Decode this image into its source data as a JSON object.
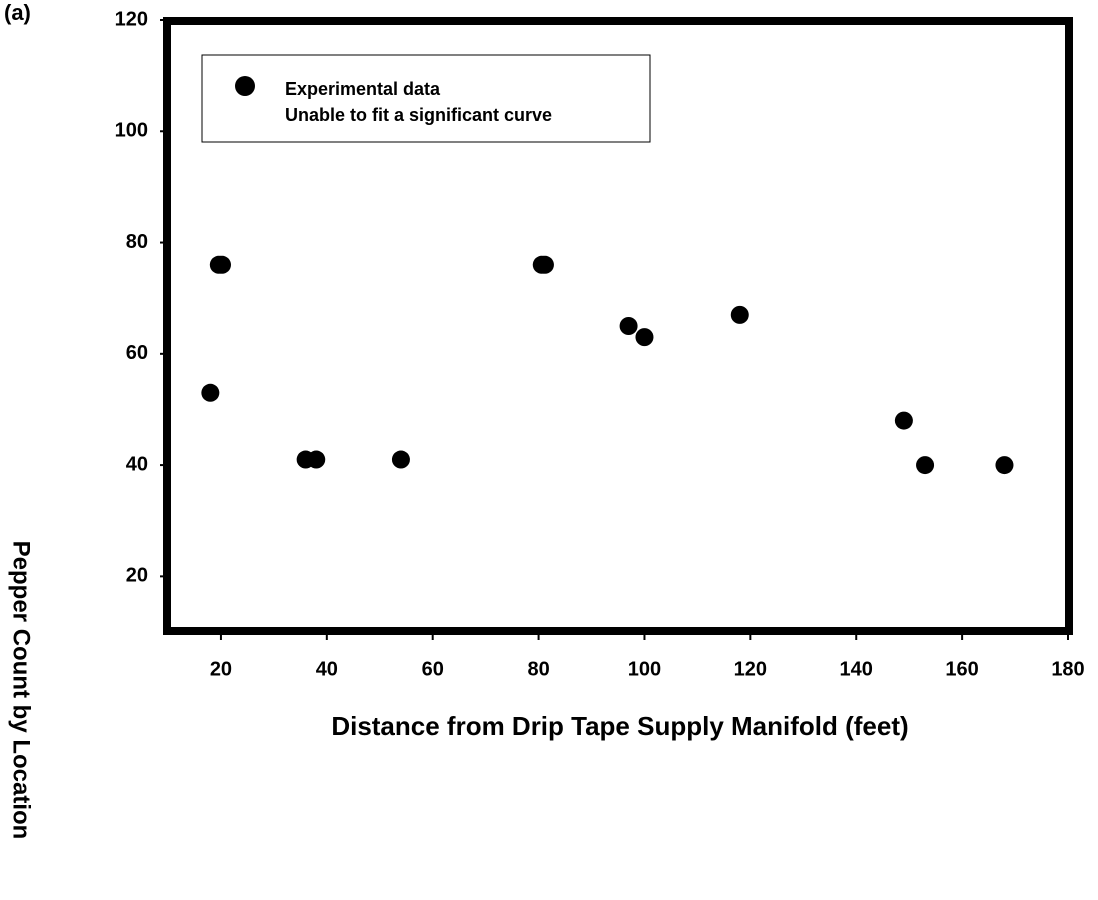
{
  "chart_data": {
    "type": "scatter",
    "panel_label": "(a)",
    "xlabel": "Distance from Drip Tape Supply Manifold (feet)",
    "ylabel": "Pepper Count by Location",
    "series": [
      {
        "name": "Experimental data",
        "color": "#000000",
        "x": [
          18,
          19.6,
          20.2,
          36,
          38,
          54,
          80.6,
          81.2,
          97,
          100,
          118,
          149,
          153,
          168
        ],
        "values": [
          53,
          76,
          76,
          41,
          41,
          41,
          76,
          76,
          65,
          63,
          67,
          48,
          40,
          40
        ]
      }
    ],
    "legend_notes": [
      "Unable to fit a significant curve"
    ],
    "legend": "upper left",
    "xlim": [
      10,
      180
    ],
    "xticks": [
      20,
      40,
      60,
      80,
      100,
      120,
      140,
      160,
      180
    ],
    "ylim": [
      10,
      120
    ],
    "yticks": [
      20,
      40,
      60,
      80,
      100,
      120
    ]
  }
}
